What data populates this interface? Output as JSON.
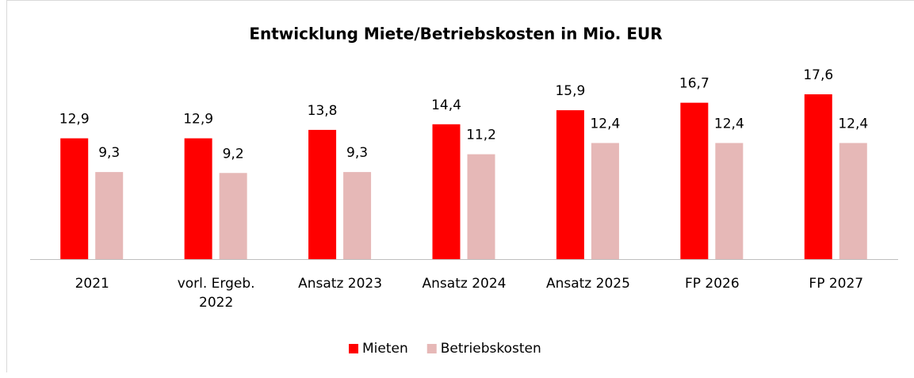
{
  "chart_data": {
    "type": "bar",
    "title": "Entwicklung Miete/Betriebskosten in Mio. EUR",
    "categories": [
      "2021",
      "vorl. Ergeb. 2022",
      "Ansatz 2023",
      "Ansatz 2024",
      "Ansatz 2025",
      "FP 2026",
      "FP 2027"
    ],
    "series": [
      {
        "name": "Mieten",
        "color": "#ff0000",
        "values": [
          12.9,
          12.9,
          13.8,
          14.4,
          15.9,
          16.7,
          17.6
        ],
        "value_labels": [
          "12,9",
          "12,9",
          "13,8",
          "14,4",
          "15,9",
          "16,7",
          "17,6"
        ]
      },
      {
        "name": "Betriebskosten",
        "color": "#e6b8b7",
        "values": [
          9.3,
          9.2,
          9.3,
          11.2,
          12.4,
          12.4,
          12.4
        ],
        "value_labels": [
          "9,3",
          "9,2",
          "9,3",
          "11,2",
          "12,4",
          "12,4",
          "12,4"
        ]
      }
    ],
    "legend": "bottom"
  }
}
